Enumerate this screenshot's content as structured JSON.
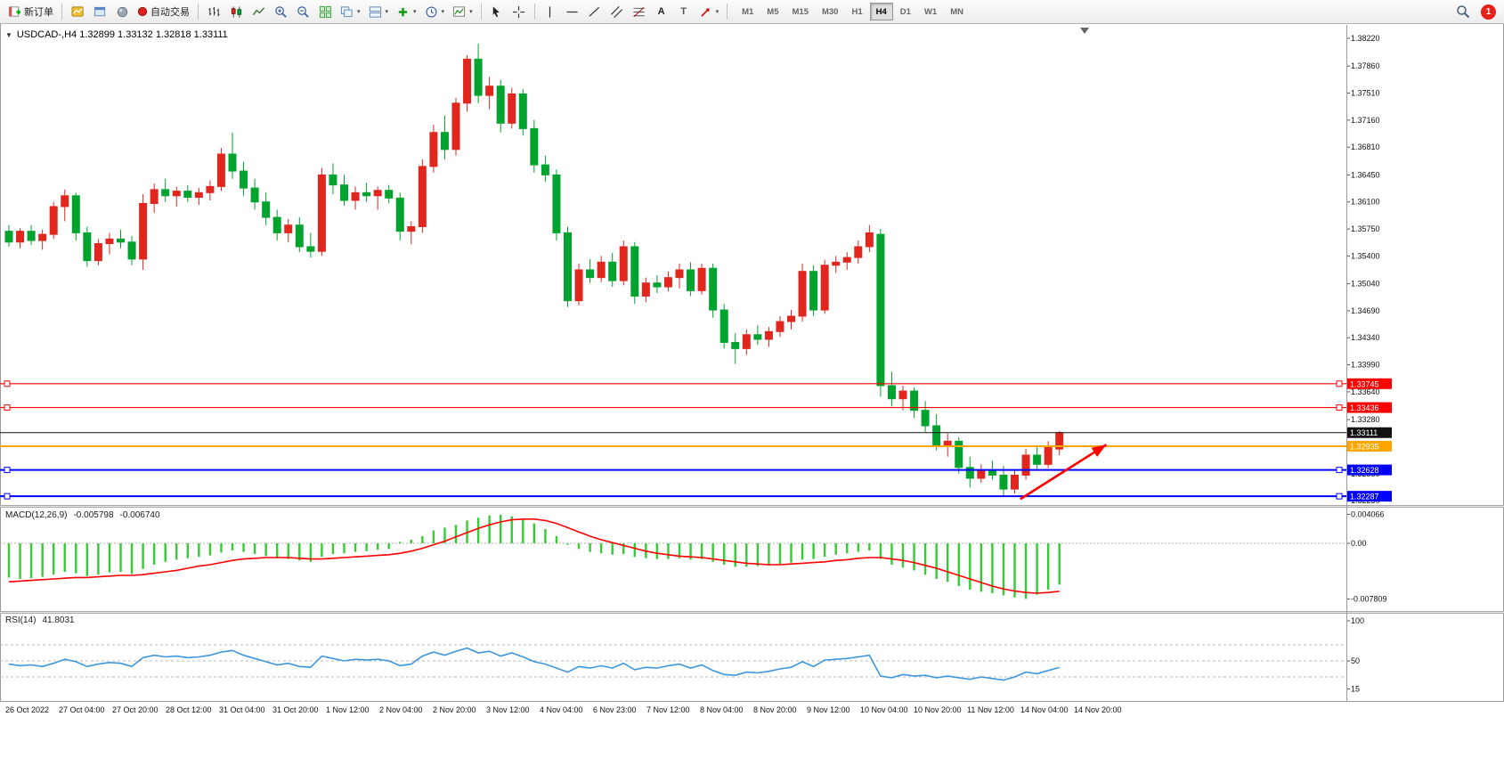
{
  "toolbar": {
    "new_order": "新订单",
    "auto_trading": "自动交易",
    "text_tool": "A",
    "label_tool": "T",
    "timeframes": [
      "M1",
      "M5",
      "M15",
      "M30",
      "H1",
      "H4",
      "D1",
      "W1",
      "MN"
    ],
    "active_timeframe": "H4",
    "notification_badge": "1"
  },
  "icons": {
    "caret": "▾",
    "collapse": "▼"
  },
  "chart": {
    "title": "USDCAD-,H4 1.32899 1.33132 1.32818 1.33111",
    "symbol": "USDCAD-",
    "period": "H4",
    "ohlc": {
      "open": "1.32899",
      "high": "1.33132",
      "low": "1.32818",
      "close": "1.33111"
    }
  },
  "macd_panel": {
    "label": "MACD(12,26,9)",
    "value_main": "-0.005798",
    "value_signal": "-0.006740",
    "axis_labels": [
      "0.004066",
      "0.00",
      "-0.007809"
    ]
  },
  "rsi_panel": {
    "label": "RSI(14)",
    "value": "41.8031",
    "axis_labels": [
      "100",
      "50",
      "15"
    ]
  },
  "chart_data": {
    "type": "candlestick",
    "symbol": "USDCAD",
    "timeframe": "H4",
    "price_range": [
      1.3223,
      1.3822
    ],
    "price_ticks": [
      "1.38220",
      "1.37860",
      "1.37510",
      "1.37160",
      "1.36810",
      "1.36450",
      "1.36100",
      "1.35750",
      "1.35400",
      "1.35040",
      "1.34690",
      "1.34340",
      "1.33990",
      "1.33640",
      "1.33280",
      "1.32930",
      "1.32580",
      "1.32230"
    ],
    "colors": {
      "bull": "#e0271e",
      "bear": "#00a32e",
      "macd_hist": "#33cc33",
      "macd_signal": "#ff0000",
      "rsi_line": "#3d96dd",
      "level_red": "#ff0000",
      "level_blue": "#0000ff",
      "level_orange": "#ffa600",
      "last_price": "#111111",
      "arrow": "#ff0000"
    },
    "candles_ohlc": [
      [
        1.3572,
        1.358,
        1.3552,
        1.3558
      ],
      [
        1.3558,
        1.3576,
        1.355,
        1.3572
      ],
      [
        1.3572,
        1.358,
        1.3554,
        1.356
      ],
      [
        1.356,
        1.3574,
        1.3548,
        1.3568
      ],
      [
        1.3568,
        1.361,
        1.3562,
        1.3604
      ],
      [
        1.3604,
        1.3626,
        1.3585,
        1.3618
      ],
      [
        1.3618,
        1.3622,
        1.356,
        1.357
      ],
      [
        1.357,
        1.3578,
        1.3526,
        1.3534
      ],
      [
        1.3534,
        1.3562,
        1.3528,
        1.3556
      ],
      [
        1.3556,
        1.357,
        1.3542,
        1.3562
      ],
      [
        1.3562,
        1.3574,
        1.355,
        1.3558
      ],
      [
        1.3558,
        1.3566,
        1.3528,
        1.3536
      ],
      [
        1.3536,
        1.362,
        1.3522,
        1.3608
      ],
      [
        1.3608,
        1.3634,
        1.3596,
        1.3626
      ],
      [
        1.3626,
        1.364,
        1.361,
        1.3618
      ],
      [
        1.3618,
        1.363,
        1.3604,
        1.3624
      ],
      [
        1.3624,
        1.3632,
        1.361,
        1.3616
      ],
      [
        1.3616,
        1.3628,
        1.3606,
        1.3622
      ],
      [
        1.3622,
        1.3638,
        1.3612,
        1.363
      ],
      [
        1.363,
        1.368,
        1.3624,
        1.3672
      ],
      [
        1.3672,
        1.37,
        1.364,
        1.365
      ],
      [
        1.365,
        1.3662,
        1.3618,
        1.3628
      ],
      [
        1.3628,
        1.364,
        1.36,
        1.361
      ],
      [
        1.361,
        1.3622,
        1.358,
        1.359
      ],
      [
        1.359,
        1.36,
        1.356,
        1.357
      ],
      [
        1.357,
        1.3588,
        1.3558,
        1.358
      ],
      [
        1.358,
        1.359,
        1.3545,
        1.3552
      ],
      [
        1.3552,
        1.357,
        1.3538,
        1.3546
      ],
      [
        1.3546,
        1.3654,
        1.354,
        1.3645
      ],
      [
        1.3645,
        1.366,
        1.362,
        1.3632
      ],
      [
        1.3632,
        1.3645,
        1.3605,
        1.3612
      ],
      [
        1.3612,
        1.363,
        1.36,
        1.3622
      ],
      [
        1.3622,
        1.3635,
        1.361,
        1.3618
      ],
      [
        1.3618,
        1.363,
        1.36,
        1.3625
      ],
      [
        1.3625,
        1.3632,
        1.3608,
        1.3615
      ],
      [
        1.3615,
        1.3622,
        1.356,
        1.3572
      ],
      [
        1.3572,
        1.3585,
        1.3555,
        1.3578
      ],
      [
        1.3578,
        1.3665,
        1.357,
        1.3656
      ],
      [
        1.3656,
        1.371,
        1.3648,
        1.37
      ],
      [
        1.37,
        1.3722,
        1.3665,
        1.3678
      ],
      [
        1.3678,
        1.3745,
        1.367,
        1.3738
      ],
      [
        1.3738,
        1.38,
        1.3727,
        1.3795
      ],
      [
        1.3795,
        1.3815,
        1.3738,
        1.3748
      ],
      [
        1.3748,
        1.3772,
        1.373,
        1.376
      ],
      [
        1.376,
        1.3768,
        1.37,
        1.3712
      ],
      [
        1.3712,
        1.3758,
        1.3705,
        1.375
      ],
      [
        1.375,
        1.3756,
        1.3696,
        1.3705
      ],
      [
        1.3705,
        1.3716,
        1.3648,
        1.3658
      ],
      [
        1.3658,
        1.367,
        1.3636,
        1.3645
      ],
      [
        1.3645,
        1.3652,
        1.356,
        1.357
      ],
      [
        1.357,
        1.3578,
        1.3474,
        1.3482
      ],
      [
        1.3482,
        1.353,
        1.3476,
        1.3522
      ],
      [
        1.3522,
        1.3536,
        1.3505,
        1.3512
      ],
      [
        1.3512,
        1.354,
        1.3506,
        1.3532
      ],
      [
        1.3532,
        1.3544,
        1.35,
        1.3508
      ],
      [
        1.3508,
        1.356,
        1.3502,
        1.3552
      ],
      [
        1.3552,
        1.3558,
        1.3478,
        1.3488
      ],
      [
        1.3488,
        1.3512,
        1.348,
        1.3505
      ],
      [
        1.3505,
        1.3515,
        1.3492,
        1.35
      ],
      [
        1.35,
        1.352,
        1.3494,
        1.3512
      ],
      [
        1.3512,
        1.353,
        1.3498,
        1.3522
      ],
      [
        1.3522,
        1.3532,
        1.3488,
        1.3495
      ],
      [
        1.3495,
        1.353,
        1.349,
        1.3524
      ],
      [
        1.3524,
        1.353,
        1.346,
        1.347
      ],
      [
        1.347,
        1.3478,
        1.342,
        1.3428
      ],
      [
        1.3428,
        1.344,
        1.34,
        1.342
      ],
      [
        1.342,
        1.3445,
        1.3412,
        1.3438
      ],
      [
        1.3438,
        1.345,
        1.3425,
        1.3432
      ],
      [
        1.3432,
        1.3448,
        1.3422,
        1.3442
      ],
      [
        1.3442,
        1.3462,
        1.3435,
        1.3455
      ],
      [
        1.3455,
        1.347,
        1.3445,
        1.3462
      ],
      [
        1.3462,
        1.353,
        1.3455,
        1.352
      ],
      [
        1.352,
        1.3528,
        1.3462,
        1.347
      ],
      [
        1.347,
        1.3535,
        1.3465,
        1.3528
      ],
      [
        1.3528,
        1.354,
        1.3518,
        1.3532
      ],
      [
        1.3532,
        1.3545,
        1.3522,
        1.3538
      ],
      [
        1.3538,
        1.356,
        1.353,
        1.3552
      ],
      [
        1.3552,
        1.358,
        1.3545,
        1.357
      ],
      [
        1.3568,
        1.3575,
        1.3358,
        1.3372
      ],
      [
        1.3372,
        1.339,
        1.3345,
        1.3355
      ],
      [
        1.3355,
        1.3372,
        1.334,
        1.3365
      ],
      [
        1.3365,
        1.337,
        1.333,
        1.334
      ],
      [
        1.334,
        1.3352,
        1.3312,
        1.332
      ],
      [
        1.332,
        1.3335,
        1.3288,
        1.3295
      ],
      [
        1.3295,
        1.331,
        1.328,
        1.33
      ],
      [
        1.33,
        1.3305,
        1.3258,
        1.3266
      ],
      [
        1.3266,
        1.328,
        1.324,
        1.3252
      ],
      [
        1.3252,
        1.327,
        1.3246,
        1.3262
      ],
      [
        1.3262,
        1.3275,
        1.325,
        1.3256
      ],
      [
        1.3256,
        1.3268,
        1.3228,
        1.3238
      ],
      [
        1.3238,
        1.3262,
        1.3232,
        1.3256
      ],
      [
        1.3256,
        1.329,
        1.325,
        1.3282
      ],
      [
        1.3282,
        1.3295,
        1.3262,
        1.327
      ],
      [
        1.327,
        1.33,
        1.3265,
        1.3292
      ],
      [
        1.32899,
        1.33132,
        1.32818,
        1.33111
      ]
    ],
    "hlines": [
      {
        "price": 1.33745,
        "label": "1.33745",
        "color": "#ff0000",
        "width": 1.2,
        "handles": true
      },
      {
        "price": 1.33436,
        "label": "1.33436",
        "color": "#ff0000",
        "width": 1.2,
        "handles": true
      },
      {
        "price": 1.33111,
        "label": "1.33111",
        "color": "#111111",
        "width": 1,
        "handles": false,
        "role": "last-price"
      },
      {
        "price": 1.32935,
        "label": "1.32935",
        "color": "#ffa600",
        "width": 2,
        "handles": false
      },
      {
        "price": 1.32628,
        "label": "1.32628",
        "color": "#0000ff",
        "width": 2,
        "handles": true
      },
      {
        "price": 1.32287,
        "label": "1.32287",
        "color": "#0000ff",
        "width": 2,
        "handles": true
      }
    ],
    "trend_arrow": {
      "from_index": 90.5,
      "from_price": 1.3225,
      "to_index": 98.2,
      "to_price": 1.32955,
      "color": "#ff0000"
    },
    "time_labels": [
      "26 Oct 2022",
      "27 Oct 04:00",
      "27 Oct 20:00",
      "28 Oct 12:00",
      "31 Oct 04:00",
      "31 Oct 20:00",
      "1 Nov 12:00",
      "2 Nov 04:00",
      "2 Nov 20:00",
      "3 Nov 12:00",
      "4 Nov 04:00",
      "6 Nov 23:00",
      "7 Nov 12:00",
      "8 Nov 04:00",
      "8 Nov 20:00",
      "9 Nov 12:00",
      "10 Nov 04:00",
      "10 Nov 20:00",
      "11 Nov 12:00",
      "14 Nov 04:00",
      "14 Nov 20:00"
    ],
    "macd": {
      "axis": {
        "max": 0.004066,
        "zero": 0.0,
        "min": -0.007809
      },
      "main": [
        -0.0048,
        -0.005,
        -0.0049,
        -0.0047,
        -0.0044,
        -0.004,
        -0.0042,
        -0.0046,
        -0.0044,
        -0.0041,
        -0.004,
        -0.0043,
        -0.0036,
        -0.003,
        -0.0026,
        -0.0023,
        -0.0021,
        -0.0019,
        -0.0017,
        -0.0013,
        -0.001,
        -0.0012,
        -0.0015,
        -0.0018,
        -0.0021,
        -0.0022,
        -0.0024,
        -0.0026,
        -0.0019,
        -0.0015,
        -0.0014,
        -0.0012,
        -0.0011,
        -0.0009,
        -0.0008,
        0.0002,
        0.0005,
        0.001,
        0.0018,
        0.0022,
        0.0026,
        0.0032,
        0.0036,
        0.0039,
        0.004,
        0.0038,
        0.0034,
        0.0028,
        0.002,
        0.001,
        -0.0002,
        -0.0008,
        -0.0012,
        -0.0014,
        -0.0016,
        -0.0015,
        -0.0019,
        -0.0021,
        -0.0022,
        -0.0022,
        -0.0021,
        -0.0023,
        -0.0022,
        -0.0026,
        -0.003,
        -0.0033,
        -0.0033,
        -0.0032,
        -0.0031,
        -0.0029,
        -0.0027,
        -0.0023,
        -0.0022,
        -0.0019,
        -0.0016,
        -0.0014,
        -0.0012,
        -0.001,
        -0.0022,
        -0.003,
        -0.0034,
        -0.0038,
        -0.0044,
        -0.005,
        -0.0054,
        -0.006,
        -0.0065,
        -0.0068,
        -0.007,
        -0.0073,
        -0.0076,
        -0.0078,
        -0.0072,
        -0.0065,
        -0.005798
      ],
      "signal": [
        -0.0054,
        -0.0053,
        -0.0052,
        -0.0051,
        -0.005,
        -0.0049,
        -0.0048,
        -0.0048,
        -0.0047,
        -0.0046,
        -0.0045,
        -0.0045,
        -0.0044,
        -0.0042,
        -0.004,
        -0.0038,
        -0.0035,
        -0.0032,
        -0.003,
        -0.0027,
        -0.0024,
        -0.0022,
        -0.0021,
        -0.002,
        -0.002,
        -0.002,
        -0.0021,
        -0.0022,
        -0.0022,
        -0.0021,
        -0.002,
        -0.0019,
        -0.0018,
        -0.0017,
        -0.0016,
        -0.0014,
        -0.0011,
        -0.0007,
        -0.0002,
        0.0003,
        0.0009,
        0.0015,
        0.0021,
        0.0026,
        0.003,
        0.0033,
        0.0034,
        0.0034,
        0.0032,
        0.0028,
        0.0022,
        0.0016,
        0.001,
        0.0005,
        0.0001,
        -0.0003,
        -0.0007,
        -0.0011,
        -0.0014,
        -0.0016,
        -0.0018,
        -0.0019,
        -0.002,
        -0.0022,
        -0.0024,
        -0.0026,
        -0.0028,
        -0.0029,
        -0.003,
        -0.003,
        -0.0029,
        -0.0028,
        -0.0027,
        -0.0026,
        -0.0024,
        -0.0023,
        -0.0021,
        -0.002,
        -0.002,
        -0.0022,
        -0.0024,
        -0.0027,
        -0.0031,
        -0.0035,
        -0.004,
        -0.0045,
        -0.005,
        -0.0055,
        -0.006,
        -0.0064,
        -0.0067,
        -0.0069,
        -0.007,
        -0.0069,
        -0.00674
      ]
    },
    "rsi": {
      "levels": [
        70,
        50,
        30
      ],
      "last": 41.8031,
      "values": [
        46,
        44,
        45,
        43,
        47,
        52,
        49,
        43,
        46,
        48,
        47,
        43,
        54,
        57,
        55,
        56,
        54,
        55,
        57,
        61,
        63,
        57,
        53,
        49,
        45,
        47,
        43,
        42,
        56,
        53,
        50,
        52,
        51,
        52,
        50,
        44,
        46,
        56,
        61,
        57,
        62,
        66,
        60,
        62,
        56,
        60,
        55,
        49,
        46,
        41,
        36,
        43,
        41,
        44,
        41,
        47,
        39,
        42,
        41,
        44,
        46,
        41,
        45,
        38,
        33,
        32,
        36,
        35,
        37,
        40,
        42,
        49,
        43,
        51,
        52,
        53,
        55,
        57,
        31,
        29,
        33,
        31,
        32,
        29,
        31,
        29,
        27,
        30,
        28,
        26,
        30,
        36,
        34,
        38,
        41.8
      ]
    }
  }
}
